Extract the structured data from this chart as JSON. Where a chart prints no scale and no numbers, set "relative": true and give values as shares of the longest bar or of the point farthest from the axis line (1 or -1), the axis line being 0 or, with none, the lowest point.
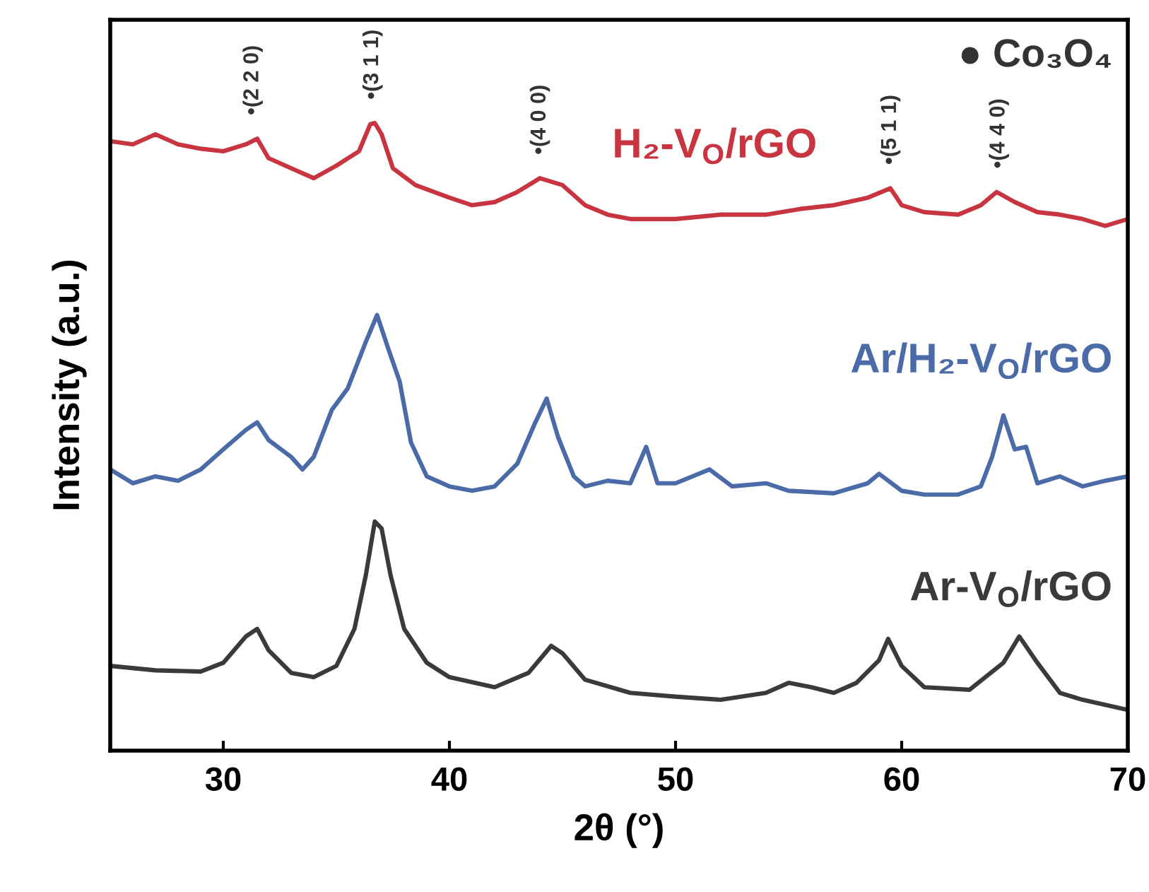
{
  "chart_data": {
    "type": "line",
    "relative": true,
    "xlabel": "2θ (°)",
    "ylabel": "Intensity (a.u.)",
    "xlim": [
      25,
      70
    ],
    "xticks": [
      30,
      40,
      50,
      60,
      70
    ],
    "tick_labels": "x",
    "grid": false,
    "legend": false,
    "marker": "none",
    "line_style": "solid",
    "series": [
      {
        "name": "H₂-V$_{O}$/rGO",
        "color": "#c8343f",
        "x": [
          25,
          26,
          27,
          28,
          29,
          30,
          31,
          31.5,
          32,
          33,
          34,
          35,
          36,
          36.5,
          36.7,
          37,
          37.5,
          38.5,
          40,
          41,
          42,
          43,
          44,
          45,
          46,
          47,
          48,
          50,
          52,
          54,
          55.5,
          57,
          58.5,
          59.5,
          60,
          61,
          62.5,
          63.5,
          64.2,
          65,
          66,
          67,
          68,
          69,
          70
        ],
        "values": [
          0.971,
          0.966,
          0.982,
          0.966,
          0.959,
          0.955,
          0.966,
          0.975,
          0.944,
          0.928,
          0.912,
          0.932,
          0.955,
          0.998,
          1,
          0.982,
          0.928,
          0.901,
          0.881,
          0.869,
          0.874,
          0.89,
          0.912,
          0.901,
          0.869,
          0.854,
          0.847,
          0.847,
          0.854,
          0.854,
          0.863,
          0.869,
          0.881,
          0.896,
          0.869,
          0.858,
          0.854,
          0.869,
          0.89,
          0.874,
          0.858,
          0.854,
          0.847,
          0.836,
          0.847
        ]
      },
      {
        "name": "Ar/H₂-V$_{O}$/rGO",
        "color": "#4a6aa8",
        "x": [
          25,
          26,
          27,
          28,
          29,
          30,
          31,
          31.5,
          32,
          33,
          33.5,
          34,
          34.8,
          35.5,
          36.3,
          36.8,
          37.3,
          37.8,
          38.3,
          39,
          40,
          41,
          42,
          43,
          43.8,
          44.3,
          44.8,
          45.5,
          46,
          47,
          48,
          48.7,
          49.2,
          50,
          51.5,
          52.5,
          54,
          55,
          57,
          58.5,
          59,
          60,
          61,
          62.5,
          63.5,
          64,
          64.5,
          65,
          65.5,
          66,
          67,
          68,
          69,
          70
        ],
        "values": [
          0.448,
          0.426,
          0.437,
          0.43,
          0.448,
          0.48,
          0.511,
          0.523,
          0.495,
          0.468,
          0.448,
          0.468,
          0.543,
          0.577,
          0.651,
          0.694,
          0.64,
          0.588,
          0.491,
          0.437,
          0.421,
          0.414,
          0.421,
          0.457,
          0.523,
          0.561,
          0.5,
          0.437,
          0.421,
          0.43,
          0.426,
          0.484,
          0.426,
          0.426,
          0.448,
          0.421,
          0.426,
          0.414,
          0.41,
          0.426,
          0.441,
          0.414,
          0.408,
          0.408,
          0.421,
          0.468,
          0.534,
          0.48,
          0.484,
          0.426,
          0.437,
          0.421,
          0.43,
          0.437
        ]
      },
      {
        "name": "Ar-V$_{O}$/rGO",
        "color": "#3a3a3a",
        "x": [
          25,
          27,
          29,
          30,
          31,
          31.5,
          32,
          33,
          34,
          35,
          35.8,
          36.3,
          36.7,
          37,
          37.4,
          38,
          39,
          40,
          42,
          43.5,
          44.5,
          45,
          46,
          48,
          50,
          52,
          54,
          55,
          56,
          57,
          58,
          59,
          59.4,
          60,
          61,
          63,
          64.5,
          65.2,
          66,
          67,
          68,
          70
        ],
        "values": [
          0.135,
          0.128,
          0.126,
          0.14,
          0.182,
          0.194,
          0.16,
          0.124,
          0.117,
          0.135,
          0.194,
          0.279,
          0.365,
          0.354,
          0.279,
          0.194,
          0.14,
          0.117,
          0.101,
          0.124,
          0.167,
          0.155,
          0.113,
          0.092,
          0.086,
          0.081,
          0.092,
          0.108,
          0.101,
          0.092,
          0.108,
          0.144,
          0.178,
          0.135,
          0.101,
          0.097,
          0.14,
          0.182,
          0.14,
          0.092,
          0.081,
          0.065
        ]
      }
    ],
    "annotations": [
      {
        "text": "•(2 2 0)",
        "x": 31.3,
        "y": 0.975
      },
      {
        "text": "•(3 1 1)",
        "x": 36.6,
        "y": 1
      },
      {
        "text": "•(4 0 0)",
        "x": 44,
        "y": 0.912
      },
      {
        "text": "•(5 1 1)",
        "x": 59.5,
        "y": 0.896
      },
      {
        "text": "•(4 4 0)",
        "x": 64.3,
        "y": 0.89
      },
      "● Co₃O₄"
    ]
  }
}
